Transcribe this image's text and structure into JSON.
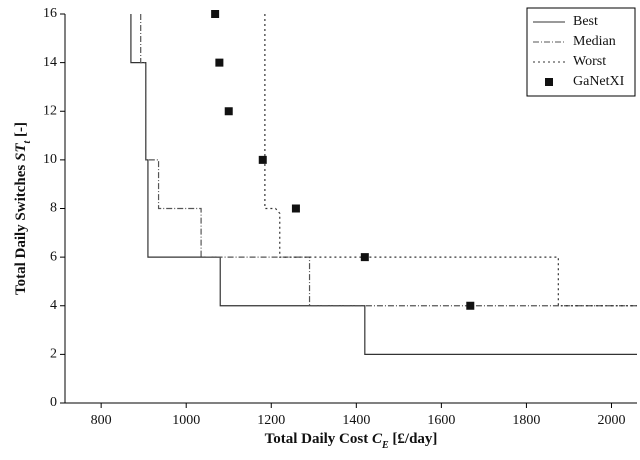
{
  "chart_data": {
    "type": "line",
    "xlabel": [
      "Total Daily Cost ",
      "C",
      "E",
      " [£/day]"
    ],
    "ylabel": [
      "Total Daily Switches ",
      "ST",
      "t",
      " [-]"
    ],
    "xlim": [
      715,
      2060
    ],
    "ylim": [
      0,
      16
    ],
    "xticks": [
      800,
      1000,
      1200,
      1400,
      1600,
      1800,
      2000
    ],
    "yticks": [
      0,
      2,
      4,
      6,
      8,
      10,
      12,
      14,
      16
    ],
    "legend": "upper right",
    "series": [
      {
        "name": "Best",
        "color": "#333333",
        "style": "solid",
        "x": [
          870,
          870,
          905,
          905,
          910,
          910,
          1080,
          1080,
          1420,
          1420,
          2060
        ],
        "values": [
          16,
          14,
          14,
          10,
          10,
          6,
          6,
          4,
          4,
          2,
          2
        ]
      },
      {
        "name": "Median",
        "color": "#555555",
        "style": "dashdot",
        "x": [
          893,
          893,
          905,
          905,
          935,
          935,
          1035,
          1035,
          1290,
          1290,
          2060
        ],
        "values": [
          16,
          14,
          14,
          10,
          10,
          8,
          8,
          6,
          6,
          4,
          4
        ]
      },
      {
        "name": "Worst",
        "color": "#333333",
        "style": "dotted",
        "x": [
          1185,
          1185,
          1210,
          1220,
          1220,
          1875,
          1875,
          2060
        ],
        "values": [
          16,
          8,
          8,
          7.8,
          6,
          6,
          4,
          4
        ]
      },
      {
        "name": "GaNetXI",
        "color": "#111111",
        "style": "marker",
        "x": [
          1068,
          1078,
          1100,
          1180,
          1258,
          1420,
          1668
        ],
        "values": [
          16,
          14,
          12,
          10,
          8,
          6,
          4
        ]
      }
    ]
  }
}
